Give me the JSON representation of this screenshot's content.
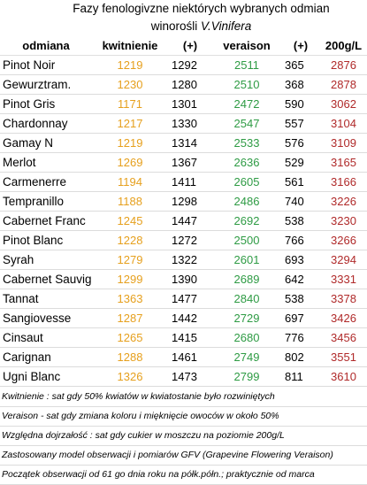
{
  "title": {
    "line1": "Fazy fenologivzne niektórych wybranych odmian",
    "line2_prefix": "winorośli ",
    "line2_species": "V.Vinifera"
  },
  "headers": [
    "odmiana",
    "kwitnienie",
    "(+)",
    "veraison",
    "(+)",
    "200g/L"
  ],
  "rows": [
    {
      "odmiana": "Pinot Noir",
      "kwitnienie": "1219",
      "p1": "1292",
      "veraison": "2511",
      "p2": "365",
      "g200": "2876"
    },
    {
      "odmiana": "Gewurztram.",
      "kwitnienie": "1230",
      "p1": "1280",
      "veraison": "2510",
      "p2": "368",
      "g200": "2878"
    },
    {
      "odmiana": "Pinot Gris",
      "kwitnienie": "1171",
      "p1": "1301",
      "veraison": "2472",
      "p2": "590",
      "g200": "3062"
    },
    {
      "odmiana": "Chardonnay",
      "kwitnienie": "1217",
      "p1": "1330",
      "veraison": "2547",
      "p2": "557",
      "g200": "3104"
    },
    {
      "odmiana": "Gamay N",
      "kwitnienie": "1219",
      "p1": "1314",
      "veraison": "2533",
      "p2": "576",
      "g200": "3109"
    },
    {
      "odmiana": "Merlot",
      "kwitnienie": "1269",
      "p1": "1367",
      "veraison": "2636",
      "p2": "529",
      "g200": "3165"
    },
    {
      "odmiana": "Carmenerre",
      "kwitnienie": "1194",
      "p1": "1411",
      "veraison": "2605",
      "p2": "561",
      "g200": "3166"
    },
    {
      "odmiana": "Tempranillo",
      "kwitnienie": "1188",
      "p1": "1298",
      "veraison": "2486",
      "p2": "740",
      "g200": "3226"
    },
    {
      "odmiana": "Cabernet Franc",
      "kwitnienie": "1245",
      "p1": "1447",
      "veraison": "2692",
      "p2": "538",
      "g200": "3230"
    },
    {
      "odmiana": "Pinot Blanc",
      "kwitnienie": "1228",
      "p1": "1272",
      "veraison": "2500",
      "p2": "766",
      "g200": "3266"
    },
    {
      "odmiana": "Syrah",
      "kwitnienie": "1279",
      "p1": "1322",
      "veraison": "2601",
      "p2": "693",
      "g200": "3294"
    },
    {
      "odmiana": "Cabernet Sauvig",
      "kwitnienie": "1299",
      "p1": "1390",
      "veraison": "2689",
      "p2": "642",
      "g200": "3331"
    },
    {
      "odmiana": "Tannat",
      "kwitnienie": "1363",
      "p1": "1477",
      "veraison": "2840",
      "p2": "538",
      "g200": "3378"
    },
    {
      "odmiana": "Sangiovesse",
      "kwitnienie": "1287",
      "p1": "1442",
      "veraison": "2729",
      "p2": "697",
      "g200": "3426"
    },
    {
      "odmiana": "Cinsaut",
      "kwitnienie": "1265",
      "p1": "1415",
      "veraison": "2680",
      "p2": "776",
      "g200": "3456"
    },
    {
      "odmiana": "Carignan",
      "kwitnienie": "1288",
      "p1": "1461",
      "veraison": "2749",
      "p2": "802",
      "g200": "3551"
    },
    {
      "odmiana": "Ugni Blanc",
      "kwitnienie": "1326",
      "p1": "1473",
      "veraison": "2799",
      "p2": "811",
      "g200": "3610"
    }
  ],
  "notes": [
    "Kwitnienie : sat gdy 50% kwiatów w kwiatostanie było rozwiniętych",
    "Veraison - sat gdy zmiana koloru i mięknięcie owoców w około 50%",
    "Względna dojrzałość : sat gdy cukier w moszczu na poziomie 200g/L",
    "Zastosowany model obserwacji i pomiarów GFV (Grapevine Flowering Veraison)",
    "Początek obserwacji od 61 go dnia roku na półk.półn.; praktycznie od marca"
  ],
  "colors": {
    "kwitnienie": "#e6a01e",
    "veraison": "#2e9b44",
    "g200": "#b02a2a"
  }
}
